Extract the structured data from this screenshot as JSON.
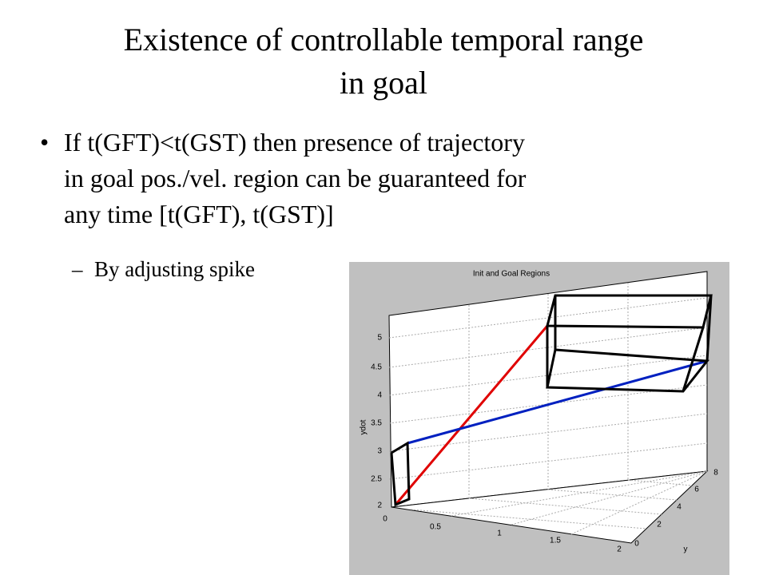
{
  "slide": {
    "title_lines": [
      "Existence of controllable temporal range",
      "in goal"
    ],
    "bullet": [
      "If t(GFT)<t(GST) then presence of trajectory",
      "in goal pos./vel. region can be guaranteed for",
      "any time [t(GFT), t(GST)]"
    ],
    "sub_bullet": "By adjusting spike"
  },
  "figure": {
    "title": "Init and Goal Regions",
    "z_ticks": [
      "5",
      "4.5",
      "4",
      "3.5",
      "3",
      "2.5",
      "2"
    ],
    "x_ticks": [
      "0",
      "0.5",
      "1",
      "1.5",
      "2"
    ],
    "y_ticks": [
      "0",
      "2",
      "4",
      "6",
      "8"
    ],
    "y_label": "y",
    "z_label": "ydot"
  }
}
